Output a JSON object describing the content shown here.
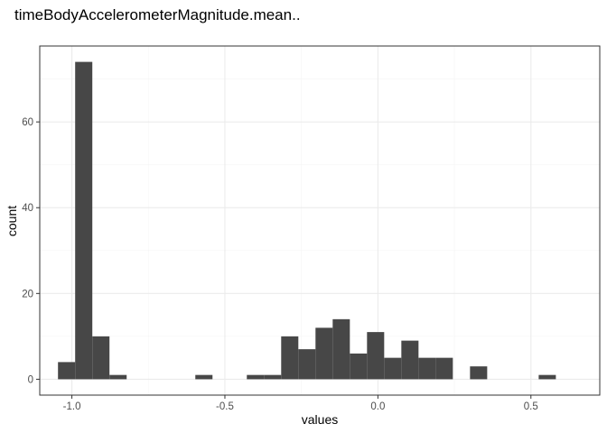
{
  "chart_data": {
    "type": "bar",
    "title": "timeBodyAccelerometerMagnitude.mean..",
    "xlabel": "values",
    "ylabel": "count",
    "xlim": [
      -1.105,
      0.725
    ],
    "ylim": [
      -3.7,
      77.7
    ],
    "x_ticks": [
      -1.0,
      -0.5,
      0.0,
      0.5
    ],
    "x_tick_labels": [
      "-1.0",
      "-0.5",
      "0.0",
      "0.5"
    ],
    "y_ticks": [
      0,
      20,
      40,
      60
    ],
    "y_tick_labels": [
      "0",
      "20",
      "40",
      "60"
    ],
    "bin_width": 0.0561,
    "bin_start": -1.0454,
    "values": [
      4,
      74,
      10,
      1,
      0,
      0,
      0,
      0,
      1,
      0,
      0,
      1,
      1,
      10,
      7,
      12,
      14,
      6,
      11,
      5,
      9,
      5,
      5,
      0,
      3,
      0,
      0,
      0,
      1
    ],
    "grid": true,
    "legend": "none",
    "colors": {
      "bar": "#474747",
      "panel_border": "#333333",
      "grid_major": "#ebebeb",
      "grid_minor": "#f5f5f5"
    }
  }
}
